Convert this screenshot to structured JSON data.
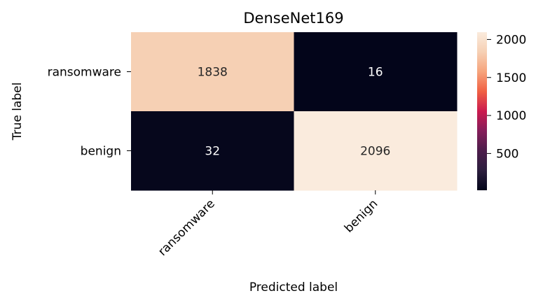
{
  "chart_data": {
    "type": "heatmap",
    "title": "DenseNet169",
    "xlabel": "Predicted label",
    "ylabel": "True label",
    "x_categories": [
      "ransomware",
      "benign"
    ],
    "y_categories": [
      "ransomware",
      "benign"
    ],
    "values": [
      [
        1838,
        16
      ],
      [
        32,
        2096
      ]
    ],
    "colormap": "rocket",
    "vmin": 16,
    "vmax": 2096,
    "colorbar_ticks": [
      500,
      1000,
      1500,
      2000
    ],
    "colorbar_tick_labels": [
      "500",
      "1000",
      "1500",
      "2000"
    ],
    "grid": false,
    "legend": "colorbar-right"
  }
}
